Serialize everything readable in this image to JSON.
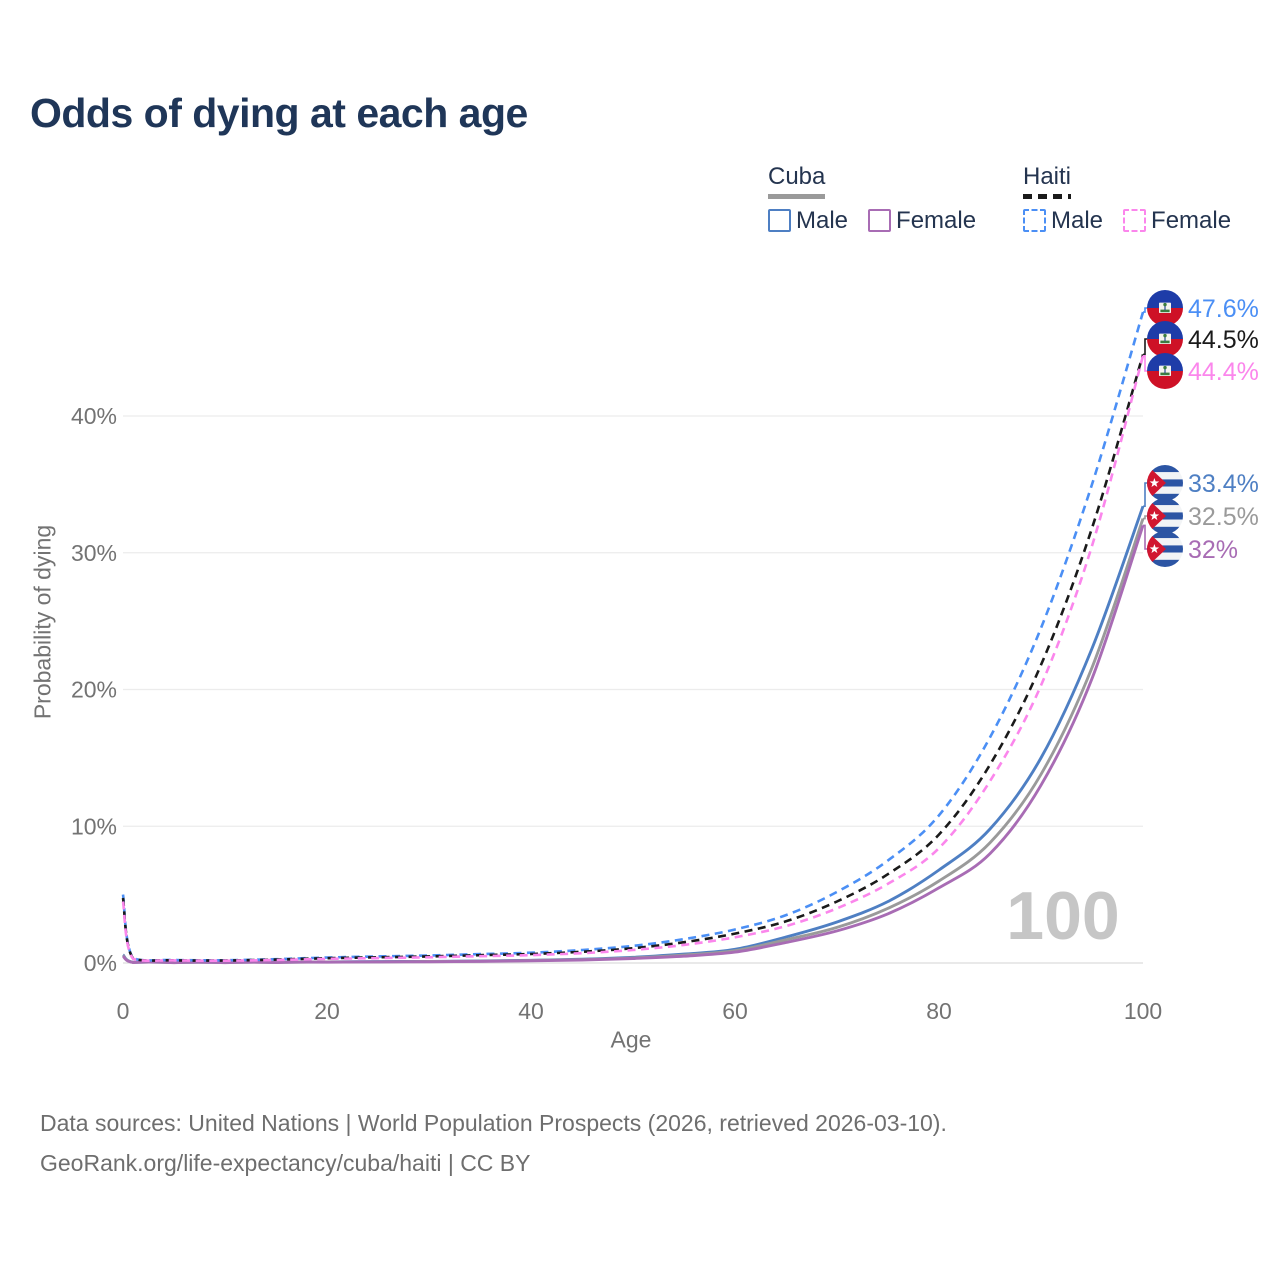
{
  "page": {
    "footer": {
      "line1": "Data sources: United Nations | World Population Prospects (2026, retrieved 2026-03-10).",
      "line2": "GeoRank.org/life-expectancy/cuba/haiti | CC BY"
    }
  },
  "legend": {
    "groups": [
      {
        "id": "cuba",
        "label": "Cuba",
        "line_color": "#9a9a9a",
        "dashed": false,
        "items": [
          {
            "id": "cuba-male",
            "label": "Male",
            "color": "#4e7fc3",
            "dashed": false
          },
          {
            "id": "cuba-female",
            "label": "Female",
            "color": "#a86cb4",
            "dashed": false
          }
        ]
      },
      {
        "id": "haiti",
        "label": "Haiti",
        "line_color": "#1a1a1a",
        "dashed": true,
        "items": [
          {
            "id": "haiti-male",
            "label": "Male",
            "color": "#4b8ff5",
            "dashed": true
          },
          {
            "id": "haiti-female",
            "label": "Female",
            "color": "#fb86ec",
            "dashed": true
          }
        ]
      }
    ]
  },
  "chart_data": {
    "type": "line",
    "title": "Odds of dying at each age",
    "xlabel": "Age",
    "ylabel": "Probability of dying",
    "xlim": [
      0,
      100
    ],
    "ylim_percent": [
      0,
      48
    ],
    "grid": true,
    "watermark": "100",
    "x_ticks": [
      0,
      20,
      40,
      60,
      80,
      100
    ],
    "y_ticks": [
      {
        "percent": 0,
        "label": "0%"
      },
      {
        "percent": 10,
        "label": "10%"
      },
      {
        "percent": 20,
        "label": "20%"
      },
      {
        "percent": 30,
        "label": "30%"
      },
      {
        "percent": 40,
        "label": "40%"
      }
    ],
    "ages": [
      0,
      1,
      5,
      10,
      15,
      20,
      25,
      30,
      35,
      40,
      45,
      50,
      55,
      60,
      65,
      70,
      75,
      80,
      85,
      90,
      95,
      100
    ],
    "series": [
      {
        "id": "cuba-male",
        "country": "Cuba",
        "sex": "Male",
        "style": "solid",
        "color": "#4e7fc3",
        "flag": "cuba",
        "end_label": "33.4%",
        "values_percent": [
          0.6,
          0.05,
          0.03,
          0.03,
          0.05,
          0.08,
          0.1,
          0.12,
          0.15,
          0.2,
          0.28,
          0.42,
          0.65,
          1.0,
          1.9,
          3.0,
          4.5,
          6.8,
          9.8,
          15.0,
          23.0,
          33.4
        ]
      },
      {
        "id": "cuba-both",
        "country": "Cuba",
        "sex": "Both sexes",
        "style": "solid",
        "color": "#9a9a9a",
        "flag": "cuba",
        "end_label": "32.5%",
        "values_percent": [
          0.55,
          0.045,
          0.028,
          0.027,
          0.045,
          0.07,
          0.09,
          0.11,
          0.13,
          0.18,
          0.25,
          0.37,
          0.58,
          0.9,
          1.7,
          2.6,
          4.0,
          6.0,
          8.8,
          13.8,
          21.6,
          32.5
        ]
      },
      {
        "id": "cuba-female",
        "country": "Cuba",
        "sex": "Female",
        "style": "solid",
        "color": "#a86cb4",
        "flag": "cuba",
        "end_label": "32%",
        "values_percent": [
          0.5,
          0.04,
          0.025,
          0.025,
          0.04,
          0.06,
          0.08,
          0.09,
          0.12,
          0.16,
          0.22,
          0.33,
          0.5,
          0.8,
          1.5,
          2.35,
          3.6,
          5.5,
          8.0,
          13.0,
          20.8,
          32.0
        ]
      },
      {
        "id": "haiti-male",
        "country": "Haiti",
        "sex": "Male",
        "style": "dashed",
        "color": "#4b8ff5",
        "flag": "haiti",
        "end_label": "47.6%",
        "values_percent": [
          5.0,
          0.35,
          0.22,
          0.2,
          0.28,
          0.4,
          0.48,
          0.55,
          0.65,
          0.75,
          0.95,
          1.25,
          1.75,
          2.45,
          3.5,
          5.2,
          7.5,
          10.8,
          16.5,
          24.5,
          35.0,
          47.6
        ]
      },
      {
        "id": "haiti-both",
        "country": "Haiti",
        "sex": "Both sexes",
        "style": "dashed",
        "color": "#1a1a1a",
        "flag": "haiti",
        "end_label": "44.5%",
        "values_percent": [
          4.75,
          0.33,
          0.2,
          0.18,
          0.25,
          0.35,
          0.42,
          0.48,
          0.57,
          0.66,
          0.82,
          1.08,
          1.52,
          2.15,
          3.05,
          4.5,
          6.5,
          9.4,
          14.5,
          21.8,
          31.8,
          44.5
        ]
      },
      {
        "id": "haiti-female",
        "country": "Haiti",
        "sex": "Female",
        "style": "dashed",
        "color": "#fb86ec",
        "flag": "haiti",
        "end_label": "44.4%",
        "values_percent": [
          4.5,
          0.3,
          0.19,
          0.17,
          0.22,
          0.3,
          0.36,
          0.42,
          0.5,
          0.58,
          0.72,
          0.95,
          1.32,
          1.88,
          2.7,
          4.0,
          5.8,
          8.4,
          13.3,
          20.3,
          30.5,
          44.4
        ]
      }
    ]
  }
}
